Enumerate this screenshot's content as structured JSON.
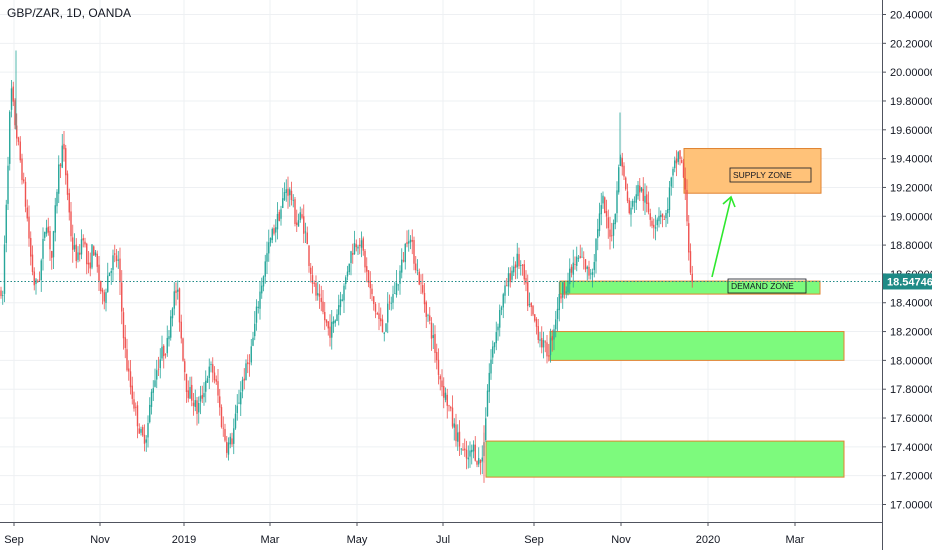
{
  "header": {
    "symbol_label": "GBP/ZAR, 1D, OANDA"
  },
  "chart_data": {
    "type": "candlestick",
    "symbol": "GBP/ZAR",
    "interval": "1D",
    "source": "OANDA",
    "ylim": [
      16.93,
      20.45
    ],
    "y_ticks": [
      "20.40000",
      "20.20000",
      "20.00000",
      "19.80000",
      "19.60000",
      "19.40000",
      "19.20000",
      "19.00000",
      "18.80000",
      "18.60000",
      "18.40000",
      "18.20000",
      "18.00000",
      "17.80000",
      "17.60000",
      "17.40000",
      "17.20000",
      "17.00000"
    ],
    "x_ticks": [
      "Sep",
      "Nov",
      "2019",
      "Mar",
      "May",
      "Jul",
      "Sep",
      "Nov",
      "2020",
      "Mar"
    ],
    "last_price": "18.54746",
    "colors": {
      "up": "#26a69a",
      "down": "#ef5350",
      "price_line": "#1e8a86",
      "grid": "#eef0f3"
    },
    "price_path": [
      [
        0,
        18.5
      ],
      [
        2,
        18.3
      ],
      [
        5,
        18.9
      ],
      [
        8,
        19.4
      ],
      [
        11,
        19.9
      ],
      [
        14,
        19.7
      ],
      [
        18,
        19.5
      ],
      [
        22,
        19.3
      ],
      [
        27,
        19.0
      ],
      [
        31,
        18.7
      ],
      [
        35,
        18.5
      ],
      [
        40,
        18.6
      ],
      [
        46,
        19.0
      ],
      [
        52,
        18.7
      ],
      [
        58,
        19.3
      ],
      [
        63,
        19.5
      ],
      [
        67,
        19.2
      ],
      [
        72,
        18.8
      ],
      [
        78,
        18.7
      ],
      [
        83,
        18.9
      ],
      [
        88,
        18.6
      ],
      [
        93,
        18.8
      ],
      [
        98,
        18.6
      ],
      [
        103,
        18.4
      ],
      [
        108,
        18.6
      ],
      [
        113,
        18.7
      ],
      [
        118,
        18.7
      ],
      [
        121,
        18.4
      ],
      [
        126,
        18.0
      ],
      [
        131,
        17.8
      ],
      [
        137,
        17.6
      ],
      [
        142,
        17.45
      ],
      [
        147,
        17.5
      ],
      [
        152,
        17.8
      ],
      [
        157,
        17.95
      ],
      [
        162,
        18.05
      ],
      [
        167,
        18.1
      ],
      [
        172,
        18.4
      ],
      [
        177,
        18.5
      ],
      [
        182,
        18.1
      ],
      [
        187,
        17.8
      ],
      [
        192,
        17.75
      ],
      [
        197,
        17.65
      ],
      [
        202,
        17.75
      ],
      [
        207,
        17.9
      ],
      [
        212,
        17.95
      ],
      [
        217,
        17.8
      ],
      [
        222,
        17.55
      ],
      [
        227,
        17.4
      ],
      [
        232,
        17.45
      ],
      [
        237,
        17.65
      ],
      [
        242,
        17.85
      ],
      [
        247,
        17.95
      ],
      [
        252,
        18.1
      ],
      [
        257,
        18.35
      ],
      [
        262,
        18.55
      ],
      [
        266,
        18.7
      ],
      [
        271,
        18.85
      ],
      [
        276,
        18.95
      ],
      [
        281,
        19.05
      ],
      [
        286,
        19.2
      ],
      [
        291,
        19.15
      ],
      [
        296,
        18.95
      ],
      [
        301,
        19.0
      ],
      [
        305,
        18.9
      ],
      [
        309,
        18.7
      ],
      [
        314,
        18.5
      ],
      [
        319,
        18.4
      ],
      [
        324,
        18.3
      ],
      [
        329,
        18.2
      ],
      [
        334,
        18.25
      ],
      [
        339,
        18.4
      ],
      [
        344,
        18.5
      ],
      [
        349,
        18.7
      ],
      [
        354,
        18.8
      ],
      [
        359,
        18.85
      ],
      [
        363,
        18.75
      ],
      [
        368,
        18.55
      ],
      [
        373,
        18.4
      ],
      [
        378,
        18.3
      ],
      [
        383,
        18.2
      ],
      [
        388,
        18.35
      ],
      [
        393,
        18.45
      ],
      [
        398,
        18.55
      ],
      [
        403,
        18.7
      ],
      [
        408,
        18.9
      ],
      [
        413,
        18.75
      ],
      [
        418,
        18.6
      ],
      [
        423,
        18.45
      ],
      [
        428,
        18.3
      ],
      [
        433,
        18.15
      ],
      [
        438,
        17.95
      ],
      [
        443,
        17.8
      ],
      [
        448,
        17.7
      ],
      [
        453,
        17.55
      ],
      [
        458,
        17.45
      ],
      [
        463,
        17.35
      ],
      [
        468,
        17.3
      ],
      [
        473,
        17.4
      ],
      [
        478,
        17.3
      ],
      [
        482,
        17.3
      ],
      [
        485,
        17.55
      ],
      [
        488,
        17.85
      ],
      [
        492,
        18.05
      ],
      [
        496,
        18.2
      ],
      [
        500,
        18.35
      ],
      [
        504,
        18.45
      ],
      [
        508,
        18.55
      ],
      [
        513,
        18.65
      ],
      [
        518,
        18.7
      ],
      [
        523,
        18.6
      ],
      [
        528,
        18.4
      ],
      [
        533,
        18.3
      ],
      [
        538,
        18.2
      ],
      [
        543,
        18.1
      ],
      [
        548,
        18.05
      ],
      [
        553,
        18.2
      ],
      [
        558,
        18.4
      ],
      [
        563,
        18.5
      ],
      [
        568,
        18.55
      ],
      [
        573,
        18.65
      ],
      [
        578,
        18.7
      ],
      [
        583,
        18.7
      ],
      [
        588,
        18.6
      ],
      [
        593,
        18.65
      ],
      [
        598,
        18.95
      ],
      [
        603,
        19.1
      ],
      [
        608,
        18.9
      ],
      [
        613,
        18.9
      ],
      [
        617,
        19.2
      ],
      [
        621,
        19.45
      ],
      [
        625,
        19.2
      ],
      [
        630,
        19.0
      ],
      [
        635,
        19.15
      ],
      [
        640,
        19.2
      ],
      [
        645,
        19.1
      ],
      [
        650,
        19.0
      ],
      [
        655,
        18.95
      ],
      [
        660,
        19.05
      ],
      [
        665,
        18.95
      ],
      [
        670,
        19.2
      ],
      [
        675,
        19.35
      ],
      [
        679,
        19.45
      ],
      [
        683,
        19.3
      ],
      [
        686,
        19.1
      ],
      [
        689,
        18.75
      ],
      [
        692,
        18.5
      ],
      [
        694,
        18.55
      ]
    ],
    "zones": [
      {
        "label": "SUPPLY ZONE",
        "top": 19.47,
        "bottom": 19.16,
        "fill": "#ffc279",
        "stroke": "#e0822e"
      },
      {
        "label": "DEMAND ZONE",
        "top": 18.55,
        "bottom": 18.46,
        "fill": "#7dfa7d",
        "stroke": "#e0822e"
      },
      {
        "label": "",
        "top": 18.2,
        "bottom": 18.0,
        "fill": "#7dfa7d",
        "stroke": "#e0822e"
      },
      {
        "label": "",
        "top": 17.44,
        "bottom": 17.19,
        "fill": "#7dfa7d",
        "stroke": "#e0822e"
      }
    ]
  }
}
